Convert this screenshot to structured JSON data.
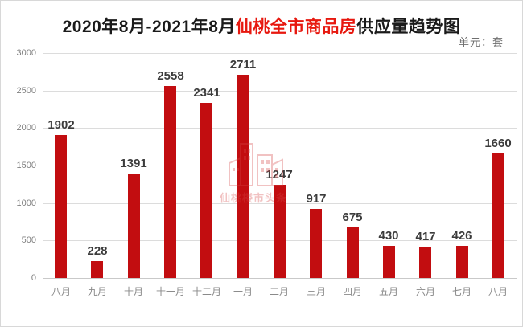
{
  "page": {
    "title_parts": {
      "prefix": "2020年8月-2021年8月",
      "highlight": "仙桃全市商品房",
      "suffix": "供应量趋势图"
    },
    "unit_label": "单元：套",
    "watermark_text": "仙桃楼市头条"
  },
  "chart_data": {
    "type": "bar",
    "title": "2020年8月-2021年8月仙桃全市商品房供应量趋势图",
    "unit": "套",
    "categories": [
      "八月",
      "九月",
      "十月",
      "十一月",
      "十二月",
      "一月",
      "二月",
      "三月",
      "四月",
      "五月",
      "六月",
      "七月",
      "八月"
    ],
    "values": [
      1902,
      228,
      1391,
      2558,
      2341,
      2711,
      1247,
      917,
      675,
      430,
      417,
      426,
      1660
    ],
    "xlabel": "",
    "ylabel": "",
    "ylim": [
      0,
      3000
    ],
    "yticks": [
      0,
      500,
      1000,
      1500,
      2000,
      2500,
      3000
    ],
    "grid": true,
    "legend": false,
    "bar_color": "#c20d10",
    "value_label_color": "#3c3c3c",
    "axis_tick_color": "#7f7f7f",
    "gridline_color": "#dcdcdc",
    "title_highlight_color": "#e7180f"
  }
}
